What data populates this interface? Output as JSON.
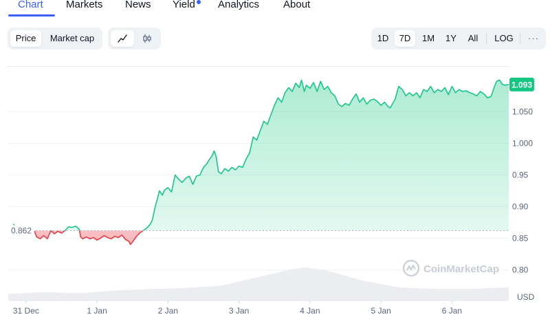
{
  "nav": {
    "tabs": [
      {
        "label": "Chart",
        "active": true
      },
      {
        "label": "Markets",
        "active": false
      },
      {
        "label": "News",
        "active": false
      },
      {
        "label": "Yield",
        "active": false,
        "dot": true
      },
      {
        "label": "Analytics",
        "active": false
      },
      {
        "label": "About",
        "active": false
      }
    ]
  },
  "toolbar": {
    "metric_tabs": [
      {
        "label": "Price",
        "selected": true
      },
      {
        "label": "Market cap",
        "selected": false
      }
    ],
    "chart_type_icons": [
      {
        "icon": "line-chart-icon",
        "selected": true
      },
      {
        "icon": "candlestick-icon",
        "selected": false
      }
    ],
    "ranges": [
      {
        "label": "1D",
        "selected": false
      },
      {
        "label": "7D",
        "selected": true
      },
      {
        "label": "1M",
        "selected": false
      },
      {
        "label": "1Y",
        "selected": false
      },
      {
        "label": "All",
        "selected": false
      }
    ],
    "log_label": "LOG",
    "more_label": "···"
  },
  "colors": {
    "accent": "#3861fb",
    "up": "#16c784",
    "down": "#ea3943",
    "grid": "#eff2f5",
    "volume": "#e7e9ee"
  },
  "chart_data": {
    "type": "area",
    "title": "",
    "xlabel": "",
    "ylabel": "",
    "currency": "USD",
    "watermark": "CoinMarketCap",
    "ylim": [
      0.77,
      1.12
    ],
    "yticks": [
      "1.050",
      "1.000",
      "0.95",
      "0.90",
      "0.85",
      "0.80"
    ],
    "ytick_values": [
      1.05,
      1.0,
      0.95,
      0.9,
      0.85,
      0.8
    ],
    "xticks": [
      {
        "label": "31 Dec",
        "x": 0.25
      },
      {
        "label": "1 Jan",
        "x": 1.25
      },
      {
        "label": "2 Jan",
        "x": 2.25
      },
      {
        "label": "3 Jan",
        "x": 3.25
      },
      {
        "label": "4 Jan",
        "x": 4.25
      },
      {
        "label": "5 Jan",
        "x": 5.25
      },
      {
        "label": "6 Jan",
        "x": 6.25
      }
    ],
    "x_range": [
      0,
      7.05
    ],
    "baseline": {
      "value": 0.862,
      "label": "0.862"
    },
    "current": {
      "value": 1.093,
      "label": "1.093"
    },
    "series": [
      {
        "values": [
          [
            0,
            0.862
          ],
          [
            0.05,
            0.862
          ],
          [
            0.08,
            0.872
          ],
          [
            0.12,
            0.862
          ],
          [
            0.2,
            0.862
          ],
          [
            0.37,
            0.861
          ],
          [
            0.4,
            0.852
          ],
          [
            0.45,
            0.849
          ],
          [
            0.5,
            0.854
          ],
          [
            0.55,
            0.849
          ],
          [
            0.6,
            0.862
          ],
          [
            0.65,
            0.857
          ],
          [
            0.7,
            0.861
          ],
          [
            0.75,
            0.858
          ],
          [
            0.8,
            0.862
          ],
          [
            0.85,
            0.868
          ],
          [
            0.9,
            0.867
          ],
          [
            0.95,
            0.869
          ],
          [
            1.0,
            0.864
          ],
          [
            1.02,
            0.852
          ],
          [
            1.05,
            0.849
          ],
          [
            1.1,
            0.852
          ],
          [
            1.15,
            0.849
          ],
          [
            1.2,
            0.851
          ],
          [
            1.25,
            0.847
          ],
          [
            1.3,
            0.85
          ],
          [
            1.35,
            0.854
          ],
          [
            1.4,
            0.851
          ],
          [
            1.45,
            0.849
          ],
          [
            1.5,
            0.853
          ],
          [
            1.55,
            0.851
          ],
          [
            1.6,
            0.855
          ],
          [
            1.65,
            0.848
          ],
          [
            1.7,
            0.845
          ],
          [
            1.72,
            0.84
          ],
          [
            1.75,
            0.844
          ],
          [
            1.8,
            0.852
          ],
          [
            1.85,
            0.858
          ],
          [
            1.9,
            0.862
          ],
          [
            1.95,
            0.866
          ],
          [
            2.0,
            0.872
          ],
          [
            2.03,
            0.879
          ],
          [
            2.07,
            0.9
          ],
          [
            2.1,
            0.912
          ],
          [
            2.13,
            0.925
          ],
          [
            2.17,
            0.918
          ],
          [
            2.2,
            0.926
          ],
          [
            2.25,
            0.93
          ],
          [
            2.3,
            0.923
          ],
          [
            2.35,
            0.95
          ],
          [
            2.4,
            0.943
          ],
          [
            2.45,
            0.938
          ],
          [
            2.5,
            0.945
          ],
          [
            2.55,
            0.948
          ],
          [
            2.6,
            0.935
          ],
          [
            2.65,
            0.948
          ],
          [
            2.7,
            0.95
          ],
          [
            2.75,
            0.962
          ],
          [
            2.8,
            0.968
          ],
          [
            2.83,
            0.974
          ],
          [
            2.87,
            0.98
          ],
          [
            2.9,
            0.988
          ],
          [
            2.93,
            0.978
          ],
          [
            2.96,
            0.955
          ],
          [
            3.0,
            0.952
          ],
          [
            3.05,
            0.96
          ],
          [
            3.1,
            0.956
          ],
          [
            3.15,
            0.962
          ],
          [
            3.2,
            0.958
          ],
          [
            3.25,
            0.964
          ],
          [
            3.3,
            0.962
          ],
          [
            3.35,
            0.975
          ],
          [
            3.4,
            0.985
          ],
          [
            3.45,
            1.01
          ],
          [
            3.5,
            1.005
          ],
          [
            3.55,
            1.02
          ],
          [
            3.6,
            1.035
          ],
          [
            3.65,
            1.03
          ],
          [
            3.7,
            1.045
          ],
          [
            3.75,
            1.06
          ],
          [
            3.8,
            1.072
          ],
          [
            3.85,
            1.065
          ],
          [
            3.9,
            1.08
          ],
          [
            3.95,
            1.088
          ],
          [
            4.0,
            1.082
          ],
          [
            4.05,
            1.095
          ],
          [
            4.1,
            1.088
          ],
          [
            4.13,
            1.1
          ],
          [
            4.17,
            1.082
          ],
          [
            4.2,
            1.092
          ],
          [
            4.25,
            1.087
          ],
          [
            4.3,
            1.096
          ],
          [
            4.35,
            1.082
          ],
          [
            4.4,
            1.098
          ],
          [
            4.45,
            1.085
          ],
          [
            4.5,
            1.09
          ],
          [
            4.55,
            1.08
          ],
          [
            4.6,
            1.075
          ],
          [
            4.65,
            1.062
          ],
          [
            4.7,
            1.058
          ],
          [
            4.75,
            1.063
          ],
          [
            4.8,
            1.06
          ],
          [
            4.85,
            1.07
          ],
          [
            4.9,
            1.078
          ],
          [
            4.95,
            1.065
          ],
          [
            5.0,
            1.072
          ],
          [
            5.05,
            1.062
          ],
          [
            5.1,
            1.068
          ],
          [
            5.15,
            1.07
          ],
          [
            5.2,
            1.066
          ],
          [
            5.25,
            1.06
          ],
          [
            5.3,
            1.065
          ],
          [
            5.35,
            1.058
          ],
          [
            5.38,
            1.056
          ],
          [
            5.4,
            1.06
          ],
          [
            5.45,
            1.07
          ],
          [
            5.5,
            1.09
          ],
          [
            5.55,
            1.085
          ],
          [
            5.6,
            1.075
          ],
          [
            5.65,
            1.08
          ],
          [
            5.7,
            1.075
          ],
          [
            5.75,
            1.08
          ],
          [
            5.8,
            1.072
          ],
          [
            5.85,
            1.085
          ],
          [
            5.9,
            1.082
          ],
          [
            5.95,
            1.09
          ],
          [
            6.0,
            1.08
          ],
          [
            6.05,
            1.085
          ],
          [
            6.1,
            1.082
          ],
          [
            6.15,
            1.088
          ],
          [
            6.2,
            1.077
          ],
          [
            6.25,
            1.09
          ],
          [
            6.3,
            1.08
          ],
          [
            6.35,
            1.085
          ],
          [
            6.4,
            1.082
          ],
          [
            6.45,
            1.083
          ],
          [
            6.5,
            1.08
          ],
          [
            6.55,
            1.078
          ],
          [
            6.6,
            1.075
          ],
          [
            6.65,
            1.082
          ],
          [
            6.7,
            1.078
          ],
          [
            6.75,
            1.072
          ],
          [
            6.8,
            1.074
          ],
          [
            6.82,
            1.08
          ],
          [
            6.85,
            1.09
          ],
          [
            6.88,
            1.098
          ],
          [
            6.92,
            1.1
          ],
          [
            6.96,
            1.093
          ],
          [
            7.0,
            1.092
          ],
          [
            7.05,
            1.093
          ]
        ]
      }
    ],
    "volume": [
      [
        0,
        0.2
      ],
      [
        0.5,
        0.25
      ],
      [
        1.0,
        0.22
      ],
      [
        1.5,
        0.3
      ],
      [
        2.0,
        0.35
      ],
      [
        2.5,
        0.38
      ],
      [
        3.0,
        0.45
      ],
      [
        3.5,
        0.7
      ],
      [
        4.0,
        0.95
      ],
      [
        4.2,
        1.0
      ],
      [
        4.5,
        0.9
      ],
      [
        5.0,
        0.6
      ],
      [
        5.5,
        0.4
      ],
      [
        6.0,
        0.35
      ],
      [
        6.5,
        0.35
      ],
      [
        7.05,
        0.4
      ]
    ]
  }
}
